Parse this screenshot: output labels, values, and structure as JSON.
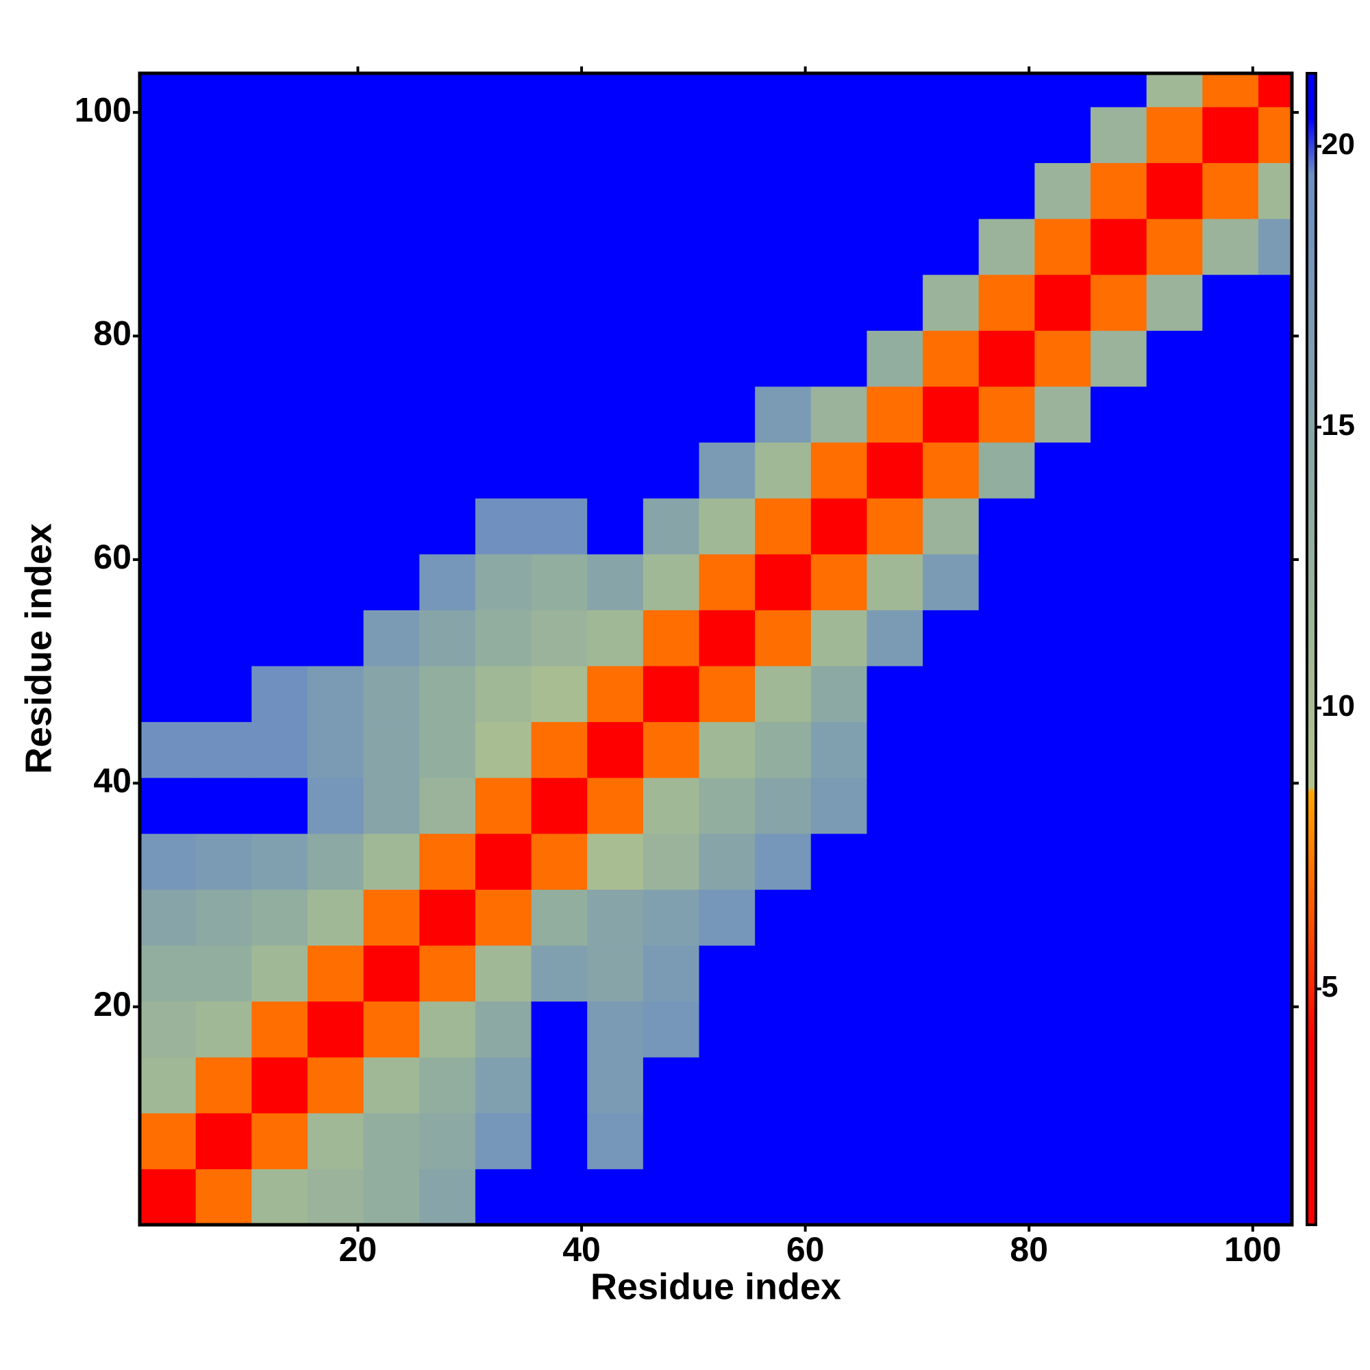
{
  "chart_data": {
    "type": "heatmap",
    "xlabel": "Residue index",
    "ylabel": "Residue index",
    "xbins": [
      0.5,
      5.5,
      10.5,
      15.5,
      20.5,
      25.5,
      30.5,
      35.5,
      40.5,
      45.5,
      50.5,
      55.5,
      60.5,
      65.5,
      70.5,
      75.5,
      80.5,
      85.5,
      90.5,
      95.5,
      100.5,
      103.5
    ],
    "ybins": [
      0.5,
      5.5,
      10.5,
      15.5,
      20.5,
      25.5,
      30.5,
      35.5,
      40.5,
      45.5,
      50.5,
      55.5,
      60.5,
      65.5,
      70.5,
      75.5,
      80.5,
      85.5,
      90.5,
      95.5,
      100.5,
      103.5
    ],
    "z": [
      [
        3,
        7,
        11,
        12,
        13,
        15,
        21,
        21,
        21,
        21,
        21,
        21,
        21,
        21,
        21,
        21,
        21,
        21,
        21,
        21,
        21
      ],
      [
        7,
        3,
        7,
        11,
        13,
        14,
        18,
        21,
        18,
        21,
        21,
        21,
        21,
        21,
        21,
        21,
        21,
        21,
        21,
        21,
        21
      ],
      [
        11,
        7,
        3,
        7,
        11,
        13,
        16,
        21,
        17,
        21,
        21,
        21,
        21,
        21,
        21,
        21,
        21,
        21,
        21,
        21,
        21
      ],
      [
        12,
        11,
        7,
        3,
        7,
        11,
        14,
        21,
        17,
        18,
        21,
        21,
        21,
        21,
        21,
        21,
        21,
        21,
        21,
        21,
        21
      ],
      [
        13,
        13,
        11,
        7,
        3,
        7,
        11,
        16,
        15,
        17,
        21,
        21,
        21,
        21,
        21,
        21,
        21,
        21,
        21,
        21,
        21
      ],
      [
        15,
        14,
        13,
        11,
        7,
        3,
        7,
        13,
        15,
        16,
        18,
        21,
        21,
        21,
        21,
        21,
        21,
        21,
        21,
        21,
        21
      ],
      [
        18,
        17,
        16,
        14,
        11,
        7,
        3,
        7,
        10,
        12,
        15,
        18,
        21,
        21,
        21,
        21,
        21,
        21,
        21,
        21,
        21
      ],
      [
        21,
        21,
        21,
        18,
        15,
        12,
        7,
        3,
        7,
        11,
        13,
        15,
        17,
        21,
        21,
        21,
        21,
        21,
        21,
        21,
        21
      ],
      [
        19,
        19,
        19,
        17,
        15,
        13,
        10,
        7,
        3,
        7,
        11,
        13,
        16,
        21,
        21,
        21,
        21,
        21,
        21,
        21,
        21
      ],
      [
        21,
        21,
        19,
        17,
        15,
        13,
        11,
        10,
        7,
        3,
        7,
        11,
        14,
        21,
        21,
        21,
        21,
        21,
        21,
        21,
        21
      ],
      [
        21,
        21,
        21,
        21,
        17,
        15,
        13,
        12,
        11,
        7,
        3,
        7,
        11,
        17,
        21,
        21,
        21,
        21,
        21,
        21,
        21
      ],
      [
        21,
        21,
        21,
        21,
        21,
        18,
        14,
        13,
        15,
        11,
        7,
        3,
        7,
        11,
        17,
        21,
        21,
        21,
        21,
        21,
        21
      ],
      [
        21,
        21,
        21,
        21,
        21,
        21,
        19,
        19,
        21,
        15,
        11,
        7,
        3,
        7,
        12,
        21,
        21,
        21,
        21,
        21,
        21
      ],
      [
        21,
        21,
        21,
        21,
        21,
        21,
        21,
        21,
        21,
        21,
        17,
        11,
        7,
        3,
        7,
        13,
        21,
        21,
        21,
        21,
        21
      ],
      [
        21,
        21,
        21,
        21,
        21,
        21,
        21,
        21,
        21,
        21,
        21,
        17,
        12,
        7,
        3,
        7,
        12,
        21,
        21,
        21,
        21
      ],
      [
        21,
        21,
        21,
        21,
        21,
        21,
        21,
        21,
        21,
        21,
        21,
        21,
        21,
        13,
        7,
        3,
        7,
        12,
        21,
        21,
        21
      ],
      [
        21,
        21,
        21,
        21,
        21,
        21,
        21,
        21,
        21,
        21,
        21,
        21,
        21,
        21,
        12,
        7,
        3,
        7,
        12,
        21,
        21
      ],
      [
        21,
        21,
        21,
        21,
        21,
        21,
        21,
        21,
        21,
        21,
        21,
        21,
        21,
        21,
        21,
        12,
        7,
        3,
        7,
        12,
        17
      ],
      [
        21,
        21,
        21,
        21,
        21,
        21,
        21,
        21,
        21,
        21,
        21,
        21,
        21,
        21,
        21,
        21,
        12,
        7,
        3,
        7,
        11
      ],
      [
        21,
        21,
        21,
        21,
        21,
        21,
        21,
        21,
        21,
        21,
        21,
        21,
        21,
        21,
        21,
        21,
        21,
        12,
        7,
        3,
        7
      ],
      [
        21,
        21,
        21,
        21,
        21,
        21,
        21,
        21,
        21,
        21,
        21,
        21,
        21,
        21,
        21,
        21,
        21,
        21,
        11,
        7,
        3
      ]
    ],
    "xlim": [
      0.5,
      103.5
    ],
    "ylim": [
      0.5,
      103.5
    ],
    "xticks": [
      20,
      40,
      60,
      80,
      100
    ],
    "yticks": [
      20,
      40,
      60,
      80,
      100
    ],
    "clim": [
      0.8,
      21.3
    ],
    "cticks": [
      5,
      10,
      15,
      20
    ],
    "colorscale": [
      [
        0.8,
        "#ff0000"
      ],
      [
        4,
        "#ff0000"
      ],
      [
        8.5,
        "#ffa500"
      ],
      [
        8.6,
        "#b3c48c"
      ],
      [
        13,
        "#92ae9e"
      ],
      [
        19.5,
        "#6d8fc2"
      ],
      [
        20.5,
        "#0000ff"
      ],
      [
        21.3,
        "#0000ff"
      ]
    ]
  }
}
